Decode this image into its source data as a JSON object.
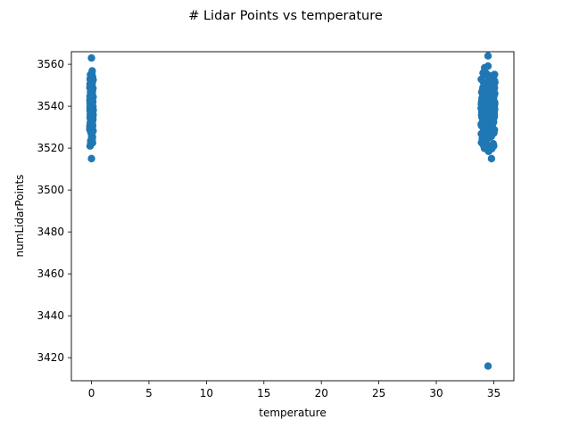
{
  "chart_data": {
    "type": "scatter",
    "title": "# Lidar Points vs temperature",
    "xlabel": "temperature",
    "ylabel": "numLidarPoints",
    "xlim": [
      -1.75,
      36.75
    ],
    "ylim": [
      3409,
      3566
    ],
    "xticks": [
      "0",
      "5",
      "10",
      "15",
      "20",
      "25",
      "30",
      "35"
    ],
    "yticks": [
      "3420",
      "3440",
      "3460",
      "3480",
      "3500",
      "3520",
      "3540",
      "3560"
    ],
    "grid": false,
    "color": "#1f77b4",
    "clusters": [
      {
        "x_range": [
          -0.15,
          0.15
        ],
        "y_range": [
          3515,
          3563
        ],
        "count": 140
      },
      {
        "x_range": [
          33.9,
          35.1
        ],
        "y_range": [
          3515,
          3564
        ],
        "count": 260
      }
    ],
    "points": [
      {
        "x": 34.5,
        "y": 3416
      },
      {
        "x": 34.5,
        "y": 3564
      },
      {
        "x": 0.0,
        "y": 3563
      },
      {
        "x": 0.0,
        "y": 3515
      },
      {
        "x": 34.8,
        "y": 3515
      },
      {
        "x": 33.9,
        "y": 3539
      }
    ]
  }
}
